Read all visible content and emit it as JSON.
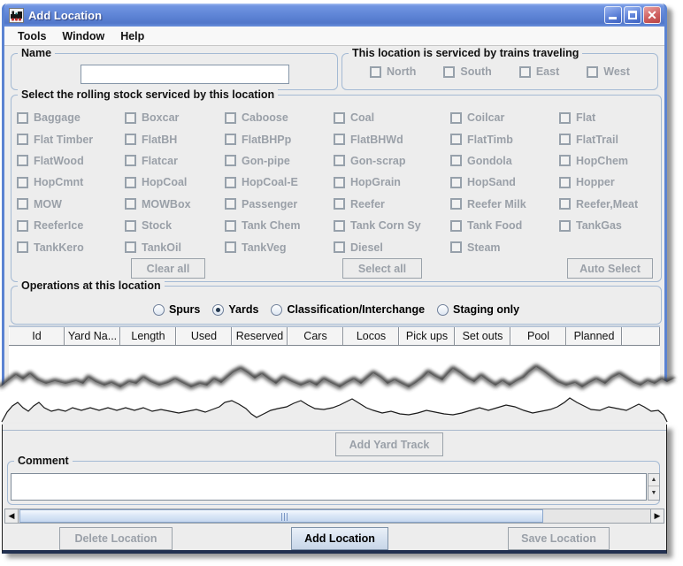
{
  "window": {
    "title": "Add Location",
    "icon": "train-icon"
  },
  "menu": {
    "items": [
      "Tools",
      "Window",
      "Help"
    ]
  },
  "name_group": {
    "title": "Name",
    "field_value": ""
  },
  "trains_group": {
    "title": "This location is serviced by trains traveling",
    "directions": [
      "North",
      "South",
      "East",
      "West"
    ]
  },
  "rolling_stock": {
    "title": "Select the rolling stock serviced by this location",
    "items": [
      "Baggage",
      "Boxcar",
      "Caboose",
      "Coal",
      "Coilcar",
      "Flat",
      "Flat Timber",
      "FlatBH",
      "FlatBHPp",
      "FlatBHWd",
      "FlatTimb",
      "FlatTrail",
      "FlatWood",
      "Flatcar",
      "Gon-pipe",
      "Gon-scrap",
      "Gondola",
      "HopChem",
      "HopCmnt",
      "HopCoal",
      "HopCoal-E",
      "HopGrain",
      "HopSand",
      "Hopper",
      "MOW",
      "MOWBox",
      "Passenger",
      "Reefer",
      "Reefer Milk",
      "Reefer,Meat",
      "ReeferIce",
      "Stock",
      "Tank Chem",
      "Tank Corn Sy",
      "Tank Food",
      "TankGas",
      "TankKero",
      "TankOil",
      "TankVeg",
      "Diesel",
      "Steam"
    ],
    "buttons": {
      "clear": "Clear all",
      "select": "Select all",
      "auto": "Auto Select"
    }
  },
  "operations": {
    "title": "Operations at this location",
    "options": [
      {
        "label": "Spurs",
        "selected": false
      },
      {
        "label": "Yards",
        "selected": true
      },
      {
        "label": "Classification/Interchange",
        "selected": false
      },
      {
        "label": "Staging only",
        "selected": false
      }
    ]
  },
  "yard_table": {
    "columns": [
      "Id",
      "Yard Na...",
      "Length",
      "Used",
      "Reserved",
      "Cars",
      "Locos",
      "Pick ups",
      "Set outs",
      "Pool",
      "Planned"
    ]
  },
  "yard_actions": {
    "add_yard_track": "Add Yard Track"
  },
  "comment_group": {
    "title": "Comment",
    "text": ""
  },
  "footer": {
    "delete": "Delete Location",
    "add": "Add Location",
    "save": "Save Location"
  },
  "icons": {
    "minimize": "minimize-icon",
    "maximize": "maximize-icon",
    "close": "close-icon",
    "up": "scroll-up-icon",
    "down": "scroll-down-icon",
    "left": "scroll-left-icon",
    "right": "scroll-right-icon"
  },
  "colors": {
    "titlebar_blue": "#6187d8",
    "window_border_blue": "#5b83d2",
    "disabled_text": "#9aa0a8",
    "scroll_thumb_blue": "#dbe7f7",
    "group_border": "#a4bad4"
  }
}
